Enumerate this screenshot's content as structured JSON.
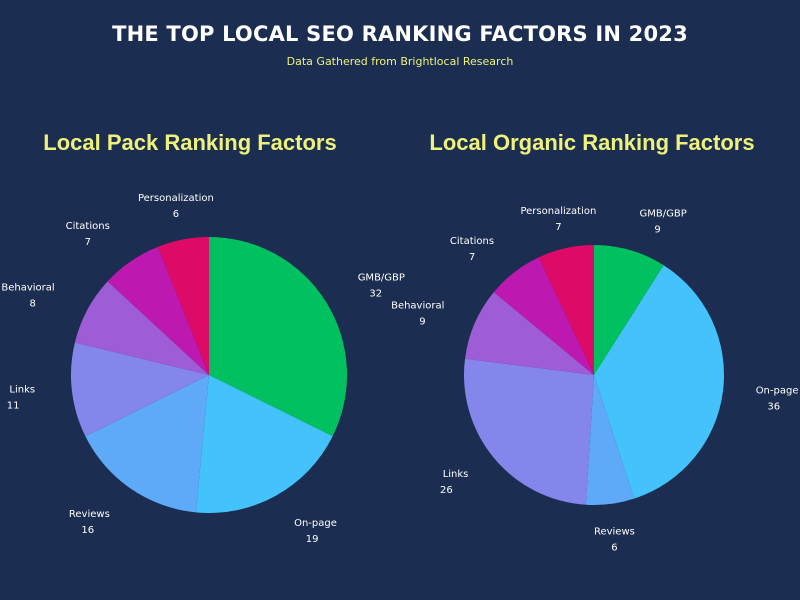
{
  "header": {
    "title": "THE TOP LOCAL SEO RANKING FACTORS IN 2023",
    "subtitle": "Data Gathered from Brightlocal Research"
  },
  "chart_data": [
    {
      "type": "pie",
      "title": "Local Pack Ranking Factors",
      "categories": [
        "GMB/GBP",
        "On-page",
        "Reviews",
        "Links",
        "Behavioral",
        "Citations",
        "Personalization"
      ],
      "values": [
        32,
        19,
        16,
        11,
        8,
        7,
        6
      ],
      "colors": [
        "#00c060",
        "#44c2fb",
        "#5eaaf8",
        "#8486ec",
        "#9e5cd6",
        "#bd19b0",
        "#dd0a68"
      ]
    },
    {
      "type": "pie",
      "title": "Local Organic Ranking Factors",
      "categories": [
        "GMB/GBP",
        "On-page",
        "Reviews",
        "Links",
        "Behavioral",
        "Citations",
        "Personalization"
      ],
      "values": [
        9,
        36,
        6,
        26,
        9,
        7,
        7
      ],
      "colors": [
        "#00c060",
        "#44c2fb",
        "#5eaaf8",
        "#8486ec",
        "#9e5cd6",
        "#bd19b0",
        "#dd0a68"
      ]
    }
  ]
}
